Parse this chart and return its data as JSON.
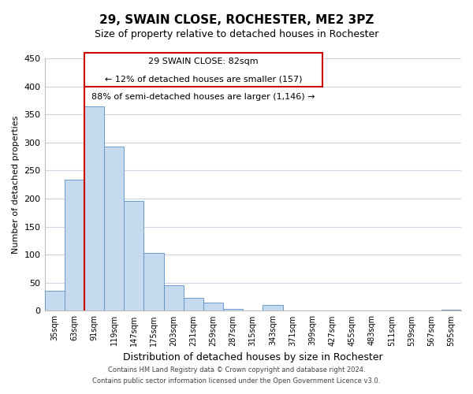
{
  "title": "29, SWAIN CLOSE, ROCHESTER, ME2 3PZ",
  "subtitle": "Size of property relative to detached houses in Rochester",
  "xlabel": "Distribution of detached houses by size in Rochester",
  "ylabel": "Number of detached properties",
  "categories": [
    "35sqm",
    "63sqm",
    "91sqm",
    "119sqm",
    "147sqm",
    "175sqm",
    "203sqm",
    "231sqm",
    "259sqm",
    "287sqm",
    "315sqm",
    "343sqm",
    "371sqm",
    "399sqm",
    "427sqm",
    "455sqm",
    "483sqm",
    "511sqm",
    "539sqm",
    "567sqm",
    "595sqm"
  ],
  "values": [
    36,
    234,
    364,
    293,
    196,
    103,
    45,
    23,
    15,
    4,
    0,
    10,
    1,
    0,
    0,
    0,
    0,
    0,
    0,
    0,
    2
  ],
  "bar_color": "#c5d9ef",
  "bar_edge_color": "#5b8ec4",
  "highlight_color": "#cc0000",
  "ylim": [
    0,
    450
  ],
  "yticks": [
    0,
    50,
    100,
    150,
    200,
    250,
    300,
    350,
    400,
    450
  ],
  "annotation_title": "29 SWAIN CLOSE: 82sqm",
  "annotation_line1": "← 12% of detached houses are smaller (157)",
  "annotation_line2": "88% of semi-detached houses are larger (1,146) →",
  "annotation_box_color": "#ffffff",
  "annotation_box_edge": "#cc0000",
  "footer1": "Contains HM Land Registry data © Crown copyright and database right 2024.",
  "footer2": "Contains public sector information licensed under the Open Government Licence v3.0.",
  "background_color": "#ffffff",
  "grid_color": "#c8d4e4",
  "title_fontsize": 11,
  "subtitle_fontsize": 9,
  "xlabel_fontsize": 9,
  "ylabel_fontsize": 8,
  "tick_fontsize": 8,
  "xtick_fontsize": 7,
  "footer_fontsize": 6,
  "annot_fontsize": 8
}
